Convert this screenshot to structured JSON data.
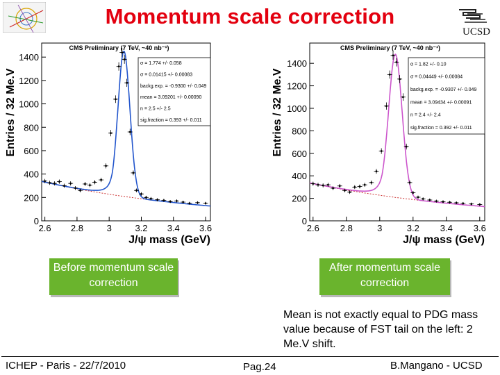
{
  "slide": {
    "title": "Momentum scale correction",
    "caption_left": "Before momentum scale correction",
    "caption_right": "After momentum scale correction",
    "note": "Mean is not exactly equal to PDG mass value because of FST tail on the left: 2 Me.V shift.",
    "footer_left": "ICHEP - Paris - 22/7/2010",
    "footer_center": "Pag.24",
    "footer_right": "B.Mangano - UCSD",
    "logo_right_text": "UCSD"
  },
  "colors": {
    "title": "#e3000f",
    "caption_bg": "#6ab42d",
    "fit_before": "#2255cc",
    "fit_after": "#cc55cc",
    "background": "#cc3333"
  },
  "chart_data": [
    {
      "type": "scatter",
      "title": "CMS Preliminary (7 TeV, ~40 nb⁻¹)",
      "xlabel": "J/ψ mass (GeV)",
      "ylabel": "Entries / 32 Me.V",
      "xlim": [
        2.58,
        3.63
      ],
      "ylim": [
        0,
        1520
      ],
      "x_ticks": [
        "2.6",
        "2.8",
        "3",
        "3.2",
        "3.4",
        "3.6"
      ],
      "y_ticks": [
        "0",
        "200",
        "400",
        "600",
        "800",
        "1000",
        "1200",
        "1400"
      ],
      "stats": [
        "σ = 1.774 +/- 0.058",
        "σ = 0.01415 +/- 0.00083",
        "backg.exp. = -0.9300 +/- 0.049",
        "mean = 3.09201 +/- 0.00090",
        "n = 2.5 +/- 2.5",
        "sig.fraction = 0.393 +/- 0.011"
      ],
      "series": [
        {
          "x": [
            2.6,
            2.63,
            2.66,
            2.69,
            2.72,
            2.76,
            2.79,
            2.82,
            2.85,
            2.88,
            2.91,
            2.95,
            2.98,
            3.01,
            3.04,
            3.06,
            3.08,
            3.095,
            3.11,
            3.13,
            3.15,
            3.17,
            3.2,
            3.23,
            3.26,
            3.3,
            3.34,
            3.38,
            3.42,
            3.46,
            3.5,
            3.55,
            3.6
          ],
          "y": [
            340,
            325,
            320,
            335,
            300,
            320,
            280,
            260,
            315,
            305,
            330,
            350,
            470,
            750,
            1040,
            1320,
            1440,
            1380,
            1180,
            760,
            410,
            260,
            230,
            200,
            190,
            180,
            175,
            165,
            170,
            160,
            150,
            155,
            150
          ]
        }
      ]
    },
    {
      "type": "scatter",
      "title": "CMS Preliminary (7 TeV, ~40 nb⁻¹)",
      "xlabel": "J/ψ mass (GeV)",
      "ylabel": "Entries / 32 Me.V",
      "xlim": [
        2.58,
        3.63
      ],
      "ylim": [
        0,
        1580
      ],
      "x_ticks": [
        "2.6",
        "2.8",
        "3",
        "3.2",
        "3.4",
        "3.6"
      ],
      "y_ticks": [
        "0",
        "200",
        "400",
        "600",
        "800",
        "1000",
        "1200",
        "1400"
      ],
      "stats": [
        "α = 1.82 +/- 0.10",
        "σ = 0.04449 +/- 0.00084",
        "backg.exp. = -0.9307 +/- 0.049",
        "mean = 3.09434 +/- 0.00091",
        "n = 2.4 +/- 2.4",
        "sig.fraction = 0.392 +/- 0.011"
      ],
      "series": [
        {
          "x": [
            2.6,
            2.63,
            2.66,
            2.69,
            2.72,
            2.76,
            2.79,
            2.82,
            2.85,
            2.88,
            2.91,
            2.95,
            2.98,
            3.01,
            3.04,
            3.06,
            3.08,
            3.1,
            3.12,
            3.14,
            3.16,
            3.18,
            3.2,
            3.23,
            3.26,
            3.3,
            3.34,
            3.38,
            3.42,
            3.46,
            3.5,
            3.55,
            3.6
          ],
          "y": [
            330,
            320,
            315,
            320,
            290,
            310,
            270,
            255,
            300,
            305,
            320,
            340,
            440,
            620,
            1020,
            1300,
            1470,
            1410,
            1260,
            1100,
            660,
            340,
            250,
            210,
            195,
            185,
            175,
            170,
            165,
            160,
            155,
            150,
            145
          ]
        }
      ]
    }
  ]
}
